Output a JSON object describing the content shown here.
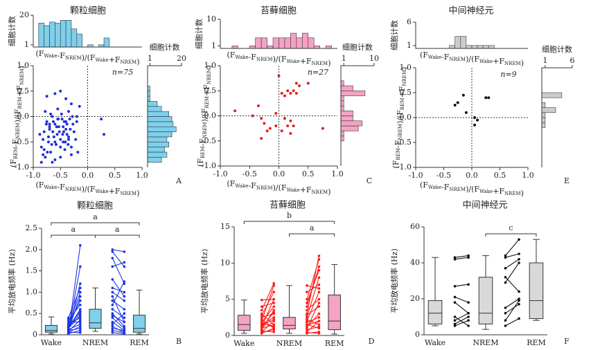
{
  "chart_data": [
    {
      "type": "scatter",
      "title": "颗粒细胞",
      "panel_label": "A",
      "annotation": "n=75",
      "xlabel": "(FWake-FNREM)/(FWake+FNREM)",
      "ylabel": "(FREM-FNREM)/(FREM+FNREM)",
      "color": "#1f2fd6",
      "xlim": [
        -1,
        1
      ],
      "ylim": [
        -1,
        1
      ],
      "zero_lines": true,
      "xticks": [
        {
          "value": -1,
          "label": "-1.0"
        },
        -0.5,
        {
          "value": 0,
          "label": "0.0"
        },
        0.5,
        {
          "value": 1,
          "label": "1.0"
        }
      ],
      "yticks": [
        {
          "value": -1,
          "label": "-1.0"
        },
        -0.5,
        {
          "value": 0,
          "label": "0.0"
        },
        0.5,
        {
          "value": 1,
          "label": "1.0"
        }
      ],
      "x": [
        -0.85,
        -0.8,
        -0.78,
        -0.75,
        -0.72,
        -0.7,
        -0.68,
        -0.65,
        -0.62,
        -0.6,
        -0.58,
        -0.55,
        -0.52,
        -0.5,
        -0.48,
        -0.45,
        -0.42,
        -0.4,
        -0.38,
        -0.35,
        -0.85,
        -0.82,
        -0.78,
        -0.74,
        -0.7,
        -0.66,
        -0.63,
        -0.6,
        -0.56,
        -0.53,
        -0.5,
        -0.47,
        -0.44,
        -0.41,
        -0.38,
        -0.35,
        -0.32,
        -0.3,
        -0.28,
        -0.25,
        -0.88,
        -0.8,
        -0.76,
        -0.72,
        -0.68,
        -0.64,
        -0.6,
        -0.57,
        -0.54,
        -0.5,
        -0.46,
        -0.43,
        -0.4,
        -0.36,
        -0.33,
        -0.3,
        -0.27,
        -0.22,
        -0.2,
        -0.18,
        -0.5,
        -0.6,
        -0.4,
        -0.3,
        -0.75,
        -0.15,
        0.25,
        0.3,
        -0.82,
        -0.65,
        -0.45,
        -0.55,
        -0.7,
        -0.35,
        -0.2
      ],
      "y": [
        -0.6,
        -0.3,
        -0.8,
        -0.1,
        -0.5,
        -0.2,
        -0.7,
        0.0,
        -0.4,
        -0.15,
        -0.55,
        -0.05,
        -0.3,
        -0.45,
        0.05,
        -0.2,
        -0.65,
        -0.1,
        -0.35,
        0.1,
        -0.9,
        -0.45,
        0.1,
        -0.7,
        -0.25,
        -0.55,
        -0.1,
        -0.85,
        -0.35,
        -0.2,
        -0.6,
        -0.05,
        -0.3,
        -0.5,
        -0.15,
        -0.4,
        -0.25,
        -0.75,
        0.0,
        -0.3,
        -0.35,
        -0.65,
        -0.15,
        -0.4,
        0.05,
        -0.3,
        -0.5,
        -0.2,
        -0.05,
        -0.8,
        -0.35,
        -0.1,
        -0.25,
        -0.55,
        -0.05,
        -0.6,
        -0.15,
        -0.45,
        0.0,
        -0.7,
        0.5,
        0.45,
        0.35,
        0.25,
        0.4,
        0.2,
        -0.05,
        -0.35,
        -0.75,
        -0.9,
        -0.5,
        0.15,
        -0.15,
        -0.45,
        -0.1
      ],
      "top_hist": {
        "ylabel": "细胞计数",
        "xlabel": "(FWake-FNREM)/(FWake+FNREM)",
        "color": "#7fd0ec",
        "log": true,
        "ylim": [
          0.8,
          20
        ],
        "yticks": [
          1,
          20
        ],
        "bins": [
          -1,
          -0.9,
          -0.8,
          -0.7,
          -0.6,
          -0.5,
          -0.4,
          -0.3,
          -0.2,
          -0.1,
          0,
          0.1,
          0.2,
          0.3,
          0.4,
          0.5,
          0.6,
          0.7,
          0.8,
          0.9,
          1
        ],
        "counts": [
          0,
          9,
          7,
          10,
          9,
          12,
          12,
          5,
          3,
          0,
          1,
          0,
          1,
          2,
          0,
          0,
          0,
          0,
          0,
          0
        ]
      },
      "right_hist": {
        "xlabel": "细胞计数",
        "color": "#7fd0ec",
        "log": true,
        "xlim": [
          0.8,
          20
        ],
        "xticks": [
          1,
          20
        ],
        "bins": [
          -1,
          -0.9,
          -0.8,
          -0.7,
          -0.6,
          -0.5,
          -0.4,
          -0.3,
          -0.2,
          -0.1,
          0,
          0.1,
          0.2,
          0.3,
          0.4,
          0.5,
          0.6,
          0.7,
          0.8,
          0.9,
          1
        ],
        "counts": [
          0,
          3,
          5,
          4,
          6,
          5,
          8,
          12,
          9,
          8,
          6,
          3,
          2,
          1,
          1,
          1,
          0,
          0,
          0,
          0
        ]
      }
    },
    {
      "type": "scatter",
      "title": "苔藓细胞",
      "panel_label": "C",
      "annotation": "n=27",
      "xlabel": "(FWake-FNREM)/(FWake+FNREM)",
      "ylabel": "(FREM-FNREM)/(FREM+FNREM)",
      "color": "#e0201e",
      "xlim": [
        -1,
        1
      ],
      "ylim": [
        -1,
        1
      ],
      "zero_lines": true,
      "xticks": [
        {
          "value": -1,
          "label": "-1.0"
        },
        -0.5,
        {
          "value": 0,
          "label": "0.0"
        },
        0.5,
        {
          "value": 1,
          "label": "1.0"
        }
      ],
      "yticks": [
        {
          "value": -1,
          "label": "-1.0"
        },
        -0.5,
        {
          "value": 0,
          "label": "0.0"
        },
        0.5,
        {
          "value": 1,
          "label": "1.0"
        }
      ],
      "x": [
        -0.75,
        -0.45,
        -0.35,
        -0.3,
        -0.25,
        -0.2,
        -0.15,
        -0.05,
        -0.3,
        0.0,
        0.05,
        0.1,
        0.15,
        0.2,
        0.25,
        0.3,
        0.35,
        0.3,
        0.1,
        0.15,
        0.2,
        0.2,
        0.25,
        0.75,
        -0.05,
        0.05,
        0.5
      ],
      "y": [
        0.1,
        0.0,
        0.2,
        -0.05,
        -0.15,
        -0.3,
        -0.25,
        -0.2,
        -0.45,
        0.8,
        0.45,
        0.4,
        0.5,
        0.45,
        0.5,
        0.65,
        0.6,
        0.45,
        -0.05,
        -0.2,
        -0.1,
        -0.35,
        -0.2,
        -0.25,
        0.05,
        -0.3,
        0.65
      ],
      "top_hist": {
        "ylabel": "细胞计数",
        "xlabel": "(FWake-FNREM)/(FWake+FNREM)",
        "color": "#f4a3c4",
        "log": true,
        "ylim": [
          0.8,
          10
        ],
        "yticks": [
          1,
          10
        ],
        "bins": [
          -1,
          -0.9,
          -0.8,
          -0.7,
          -0.6,
          -0.5,
          -0.4,
          -0.3,
          -0.2,
          -0.1,
          0,
          0.1,
          0.2,
          0.3,
          0.4,
          0.5,
          0.6,
          0.7,
          0.8,
          0.9,
          1
        ],
        "counts": [
          0,
          0,
          1,
          0,
          0,
          1,
          2,
          2,
          1,
          2,
          2,
          2,
          3,
          2,
          3,
          2,
          1,
          0,
          1,
          0
        ]
      },
      "right_hist": {
        "xlabel": "细胞计数",
        "color": "#f4a3c4",
        "log": true,
        "xlim": [
          0.8,
          10
        ],
        "xticks": [
          1,
          10
        ],
        "bins": [
          -1,
          -0.9,
          -0.8,
          -0.7,
          -0.6,
          -0.5,
          -0.4,
          -0.3,
          -0.2,
          -0.1,
          0,
          0.1,
          0.2,
          0.3,
          0.4,
          0.5,
          0.6,
          0.7,
          0.8,
          0.9,
          1
        ],
        "counts": [
          0,
          0,
          0,
          0,
          0,
          1,
          1,
          3,
          4,
          2,
          2,
          1,
          1,
          1,
          5,
          2,
          1,
          0,
          0,
          0
        ]
      }
    },
    {
      "type": "scatter",
      "title": "中间神经元",
      "panel_label": "E",
      "annotation": "n=9",
      "xlabel": "(FWake-FNREM)/(FWake+FNREM)",
      "ylabel": "(FREM-FNREM)/(FREM+FNREM)",
      "color": "#111111",
      "xlim": [
        -1,
        1
      ],
      "ylim": [
        -1,
        1
      ],
      "zero_lines": true,
      "xticks": [
        {
          "value": -1,
          "label": "-1.0"
        },
        -0.5,
        {
          "value": 0,
          "label": "0.0"
        },
        0.5,
        {
          "value": 1,
          "label": "1.0"
        }
      ],
      "yticks": [
        {
          "value": -1,
          "label": "-1.0"
        },
        -0.5,
        {
          "value": 0,
          "label": "0.0"
        },
        0.5,
        {
          "value": 1,
          "label": "1.0"
        }
      ],
      "x": [
        -0.3,
        -0.25,
        -0.15,
        -0.1,
        0.05,
        0.1,
        0.05,
        0.25,
        0.3
      ],
      "y": [
        0.25,
        0.3,
        0.45,
        0.1,
        0.0,
        -0.05,
        -0.15,
        0.4,
        0.4
      ],
      "top_hist": {
        "ylabel": "细胞计数",
        "xlabel": "(FWake-FNREM)/(FWake+FNREM)",
        "color": "#cccccc",
        "log": true,
        "ylim": [
          0.8,
          6
        ],
        "yticks": [
          1,
          6
        ],
        "bins": [
          -1,
          -0.9,
          -0.8,
          -0.7,
          -0.6,
          -0.5,
          -0.4,
          -0.3,
          -0.2,
          -0.1,
          0,
          0.1,
          0.2,
          0.3,
          0.4,
          0.5,
          0.6,
          0.7,
          0.8,
          0.9,
          1
        ],
        "counts": [
          0,
          0,
          0,
          0,
          0,
          0,
          1,
          2,
          2,
          1,
          1,
          1,
          1,
          1,
          0,
          0,
          0,
          0,
          0,
          0
        ]
      },
      "right_hist": {
        "xlabel": "细胞计数",
        "color": "#cccccc",
        "log": true,
        "xlim": [
          0.8,
          6
        ],
        "xticks": [
          1,
          6
        ],
        "bins": [
          -1,
          -0.9,
          -0.8,
          -0.7,
          -0.6,
          -0.5,
          -0.4,
          -0.3,
          -0.2,
          -0.1,
          0,
          0.1,
          0.2,
          0.3,
          0.4,
          0.5,
          0.6,
          0.7,
          0.8,
          0.9,
          1
        ],
        "counts": [
          0,
          0,
          0,
          0,
          0,
          0,
          0,
          0,
          1,
          1,
          1,
          2,
          1,
          0,
          3,
          0,
          0,
          0,
          0,
          0
        ]
      }
    },
    {
      "type": "box",
      "title": "颗粒细胞",
      "panel_label": "B",
      "ylabel": "平均放电频率 (Hz)",
      "categories": [
        "Wake",
        "NREM",
        "REM"
      ],
      "box_color": "#7fd0ec",
      "line_color": "#1a33e6",
      "ylim": [
        0,
        2.5
      ],
      "yticks": [
        0,
        0.5,
        {
          "value": 1,
          "label": "1.0"
        },
        1.5,
        {
          "value": 2,
          "label": "2.0"
        },
        2.5
      ],
      "boxes": [
        {
          "min": 0.02,
          "q1": 0.06,
          "median": 0.1,
          "q3": 0.22,
          "max": 0.42
        },
        {
          "min": 0.08,
          "q1": 0.15,
          "median": 0.28,
          "q3": 0.6,
          "max": 1.1
        },
        {
          "min": 0.02,
          "q1": 0.06,
          "median": 0.15,
          "q3": 0.46,
          "max": 1.05
        }
      ],
      "pairs": [
        {
          "from": "Wake",
          "to": "NREM",
          "start": [
            0.05,
            0.08,
            0.1,
            0.12,
            0.15,
            0.18,
            0.2,
            0.22,
            0.25,
            0.3,
            0.35,
            0.4,
            0.05,
            0.1,
            0.15,
            0.08,
            0.12,
            0.2,
            0.03,
            0.06
          ],
          "end": [
            2.1,
            1.6,
            1.2,
            0.9,
            0.6,
            0.5,
            1.0,
            0.8,
            0.4,
            0.3,
            0.7,
            1.1,
            0.2,
            0.15,
            0.45,
            0.35,
            0.25,
            0.55,
            0.1,
            0.05
          ]
        },
        {
          "from": "NREM",
          "to": "REM",
          "start": [
            2.0,
            1.95,
            1.8,
            1.6,
            1.3,
            1.1,
            0.9,
            0.8,
            0.6,
            0.5,
            0.4,
            0.3,
            0.25,
            0.2,
            0.15,
            0.1,
            0.7,
            1.0,
            0.45,
            0.05
          ],
          "end": [
            1.95,
            1.6,
            1.2,
            1.7,
            0.9,
            1.0,
            0.3,
            0.6,
            0.4,
            0.2,
            0.15,
            0.1,
            0.5,
            0.05,
            0.1,
            0.05,
            1.25,
            0.8,
            0.3,
            0.02
          ]
        }
      ],
      "brackets": [
        {
          "from": "Wake",
          "to": "REM",
          "label": "a"
        },
        {
          "from": "Wake",
          "to": "NREM",
          "label": "a"
        },
        {
          "from": "NREM",
          "to": "REM",
          "label": "a"
        }
      ]
    },
    {
      "type": "box",
      "title": "苔藓细胞",
      "panel_label": "D",
      "ylabel": "平均放电频率 (Hz)",
      "categories": [
        "Wake",
        "NREM",
        "REM"
      ],
      "box_color": "#f4a3c4",
      "line_color": "#ff1a1a",
      "ylim": [
        0,
        15
      ],
      "yticks": [
        0,
        5,
        10,
        15
      ],
      "boxes": [
        {
          "min": 0.3,
          "q1": 0.7,
          "median": 1.5,
          "q3": 2.8,
          "max": 4.9
        },
        {
          "min": 0.3,
          "q1": 0.9,
          "median": 1.4,
          "q3": 2.5,
          "max": 6.9
        },
        {
          "min": 0.2,
          "q1": 0.8,
          "median": 2.0,
          "q3": 5.6,
          "max": 9.8
        }
      ],
      "pairs": [
        {
          "from": "Wake",
          "to": "NREM",
          "start": [
            0.3,
            0.5,
            0.8,
            1.0,
            1.2,
            1.5,
            1.8,
            2.0,
            2.5,
            3.0,
            3.5,
            4.0,
            4.9,
            0.6,
            1.4,
            2.2,
            2.8,
            0.4,
            1.1,
            1.7
          ],
          "end": [
            1.0,
            2.0,
            3.5,
            1.5,
            5.0,
            2.5,
            4.0,
            6.9,
            3.0,
            1.5,
            7.2,
            4.5,
            5.0,
            0.5,
            2.2,
            1.0,
            6.0,
            0.8,
            3.2,
            1.2
          ]
        },
        {
          "from": "NREM",
          "to": "REM",
          "start": [
            0.3,
            0.5,
            1.0,
            1.5,
            2.0,
            2.5,
            3.0,
            3.5,
            4.0,
            5.0,
            6.0,
            0.8,
            1.2,
            1.8,
            2.2,
            2.8,
            0.4,
            4.5,
            6.9,
            1.4
          ],
          "end": [
            0.5,
            2.0,
            4.5,
            1.0,
            6.0,
            8.0,
            11.0,
            5.0,
            9.5,
            10.5,
            7.0,
            1.2,
            3.0,
            2.5,
            1.5,
            4.0,
            0.3,
            9.0,
            6.5,
            2.0
          ]
        }
      ],
      "brackets": [
        {
          "from": "Wake",
          "to": "REM",
          "label": "b"
        },
        {
          "from": "NREM",
          "to": "REM",
          "label": "a"
        }
      ]
    },
    {
      "type": "box",
      "title": "中间神经元",
      "panel_label": "F",
      "ylabel": "平均放电频率 (Hz)",
      "categories": [
        "Wake",
        "NREM",
        "REM"
      ],
      "box_color": "#d9d9d9",
      "line_color": "#111111",
      "ylim": [
        0,
        60
      ],
      "yticks": [
        0,
        20,
        40,
        60
      ],
      "boxes": [
        {
          "min": 5,
          "q1": 6,
          "median": 12,
          "q3": 19,
          "max": 43
        },
        {
          "min": 3,
          "q1": 6,
          "median": 12,
          "q3": 32,
          "max": 44
        },
        {
          "min": 8,
          "q1": 9,
          "median": 19,
          "q3": 40,
          "max": 53
        }
      ],
      "pairs": [
        {
          "from": "Wake",
          "to": "NREM",
          "start": [
            43,
            42,
            27,
            21,
            18,
            10,
            8,
            6,
            5
          ],
          "end": [
            44,
            43,
            28,
            18,
            12,
            5,
            12,
            10,
            8
          ]
        },
        {
          "from": "NREM",
          "to": "REM",
          "start": [
            44,
            43,
            37,
            32,
            29,
            15,
            12,
            8,
            5
          ],
          "end": [
            53,
            45,
            42,
            24,
            40,
            20,
            17,
            19,
            9
          ]
        }
      ],
      "brackets": [
        {
          "from": "NREM",
          "to": "REM",
          "label": "c"
        }
      ]
    }
  ]
}
